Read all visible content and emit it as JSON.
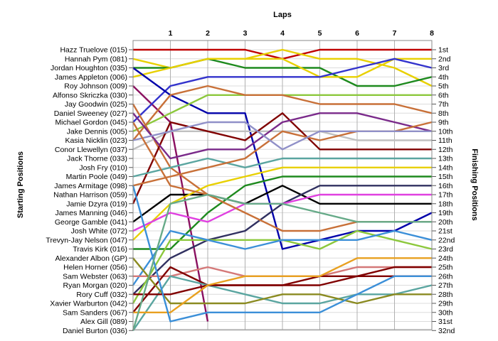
{
  "chart_data": {
    "type": "line",
    "title": "",
    "xlabel": "Laps",
    "ylabel": "Starting Positions",
    "y2label": "Finishing Positions",
    "x_ticks": [
      "1",
      "2",
      "3",
      "4",
      "5",
      "6",
      "7",
      "8"
    ],
    "xlim": [
      0,
      8
    ],
    "ylim": [
      1,
      32
    ],
    "y_reversed": true,
    "grid": true,
    "drivers": [
      "Hazz Truelove (015)",
      "Hannah Pym (081)",
      "Jordan Houghton (035)",
      "James Appleton (006)",
      "Roy Johnson (009)",
      "Alfonso Skriczka (030)",
      "Jay Goodwin (025)",
      "Daniel Sweeney (027)",
      "Michael Gordon (045)",
      "Jake Dennis (005)",
      "Kasia Nicklin (023)",
      "Conor Llewellyn (037)",
      "Jack Thorne (033)",
      "Josh Fry (010)",
      "Martin Poole (049)",
      "James Armitage (098)",
      "Nathan Harrison (059)",
      "Jamie Dzyra (019)",
      "James Manning (046)",
      "George Gamble (041)",
      "Josh White (072)",
      "Trevyn-Jay Nelson (047)",
      "Travis Kirk (016)",
      "Alexander Albon (GP)",
      "Helen Horner (056)",
      "Sam Webster (063)",
      "Ryan Morgan (020)",
      "Rory Cuff (032)",
      "Xavier Warburton (042)",
      "Sam Sanders (067)",
      "Alex Gill (089)",
      "Daniel Burton (036)"
    ],
    "finish_labels": [
      "1st",
      "2nd",
      "3rd",
      "4th",
      "5th",
      "6th",
      "7th",
      "8th",
      "9th",
      "10th",
      "11th",
      "12th",
      "13th",
      "14th",
      "15th",
      "16th",
      "17th",
      "18th",
      "19th",
      "20th",
      "21st",
      "22nd",
      "23rd",
      "24th",
      "25th",
      "26th",
      "27th",
      "28th",
      "29th",
      "30th",
      "31st",
      "32nd"
    ],
    "series": [
      {
        "color": "#c00000",
        "values": [
          1,
          1,
          1,
          1,
          2,
          1,
          1,
          1,
          1
        ]
      },
      {
        "color": "#e8d000",
        "values": [
          2,
          3,
          2,
          2,
          1,
          2,
          2,
          3,
          5
        ]
      },
      {
        "color": "#1e8a1e",
        "values": [
          3,
          3,
          2,
          3,
          3,
          3,
          5,
          5,
          4
        ]
      },
      {
        "color": "#e8d000",
        "values": [
          4,
          3,
          2,
          2,
          2,
          4,
          4,
          2,
          2
        ]
      },
      {
        "color": "#8a1060",
        "values": [
          5,
          9,
          31
        ]
      },
      {
        "color": "#3333cc",
        "values": [
          9,
          5,
          4,
          4,
          4,
          4,
          3,
          2,
          3
        ]
      },
      {
        "color": "#c87038",
        "values": [
          7,
          14,
          17
        ]
      },
      {
        "color": "#0000aa",
        "values": [
          3,
          6,
          8,
          8,
          23,
          22,
          21,
          21,
          19
        ]
      },
      {
        "color": "#8cc83c",
        "values": [
          10,
          8,
          6,
          6,
          6,
          6,
          6,
          6,
          6
        ]
      },
      {
        "color": "#c0c0c0",
        "values": [
          12,
          10,
          10,
          10,
          10,
          10,
          11,
          11,
          11
        ]
      },
      {
        "color": "#800000",
        "values": [
          18,
          9,
          10,
          11,
          8,
          12,
          12,
          12,
          12
        ]
      },
      {
        "color": "#c87038",
        "values": [
          11,
          6,
          5,
          6,
          6,
          7,
          7,
          7,
          8
        ]
      },
      {
        "color": "#7a2a8a",
        "values": [
          8,
          13,
          12,
          12,
          9,
          8,
          8,
          9,
          10
        ]
      },
      {
        "color": "#5aa5a0",
        "values": [
          15,
          14,
          13,
          14,
          13,
          13,
          13,
          13,
          13
        ]
      },
      {
        "color": "#c87038",
        "values": [
          16,
          15,
          14,
          13,
          10,
          11,
          10,
          10,
          9
        ]
      },
      {
        "color": "#9090c8",
        "values": [
          11,
          10,
          9,
          9,
          12,
          10,
          10,
          10,
          10
        ]
      },
      {
        "color": "#000000",
        "values": [
          20,
          17,
          17,
          18,
          16,
          18,
          18,
          18,
          18
        ]
      },
      {
        "color": "#e8d000",
        "values": [
          22,
          18,
          16,
          15,
          14,
          14,
          14,
          14,
          14
        ]
      },
      {
        "color": "#1e8a1e",
        "values": [
          23,
          23,
          19,
          16,
          15,
          15,
          15,
          15,
          15
        ]
      },
      {
        "color": "#303060",
        "values": [
          28,
          24,
          22,
          21,
          18,
          16,
          16,
          16,
          16
        ]
      },
      {
        "color": "#e040e0",
        "values": [
          21,
          19,
          20,
          18,
          18,
          17,
          17,
          17,
          17
        ]
      },
      {
        "color": "#8cc83c",
        "values": [
          29,
          22,
          22,
          22,
          22,
          23,
          21,
          22,
          23
        ]
      },
      {
        "color": "#3b8fd8",
        "values": [
          27,
          21,
          22,
          23,
          22,
          22,
          22,
          21,
          22
        ]
      },
      {
        "color": "#c87038",
        "values": [
          9,
          16,
          17,
          19,
          21,
          21,
          20,
          20,
          20
        ]
      },
      {
        "color": "#d47878",
        "values": [
          26,
          26,
          25,
          26,
          26,
          26,
          25,
          25,
          25
        ]
      },
      {
        "color": "#800000",
        "values": [
          30,
          25,
          27,
          27,
          27,
          26,
          26,
          25,
          25
        ]
      },
      {
        "color": "#5aa5a0",
        "values": [
          32,
          26,
          27,
          28,
          29,
          29,
          28,
          28,
          27
        ]
      },
      {
        "color": "#8a8a20",
        "values": [
          24,
          29,
          29,
          29,
          28,
          28,
          29,
          28,
          28
        ]
      },
      {
        "color": "#800000",
        "values": [
          28,
          28,
          27,
          27,
          27,
          27,
          26,
          26,
          26
        ]
      },
      {
        "color": "#e8a020",
        "values": [
          30,
          30,
          27,
          26,
          26,
          26,
          24,
          24,
          24
        ]
      },
      {
        "color": "#3b8fd8",
        "values": [
          16,
          31,
          30,
          30,
          30,
          30,
          28,
          26,
          26
        ]
      },
      {
        "color": "#66aa88",
        "values": [
          32,
          18,
          17,
          18,
          18,
          19,
          20,
          20,
          20
        ]
      }
    ]
  }
}
